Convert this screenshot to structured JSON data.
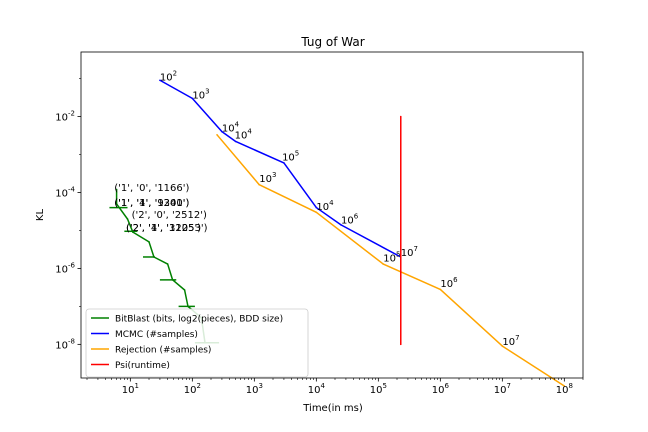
{
  "chart_data": {
    "type": "line",
    "title": "Tug of War",
    "xlabel": "Time(in ms)",
    "ylabel": "KL",
    "xscale": "log",
    "yscale": "log",
    "xlim": [
      1.6,
      200000000
    ],
    "ylim": [
      1.3e-09,
      0.5
    ],
    "x_ticks": [
      {
        "value": 10,
        "label": "10^1"
      },
      {
        "value": 100,
        "label": "10^2"
      },
      {
        "value": 1000,
        "label": "10^3"
      },
      {
        "value": 10000,
        "label": "10^4"
      },
      {
        "value": 100000,
        "label": "10^5"
      },
      {
        "value": 1000000,
        "label": "10^6"
      },
      {
        "value": 10000000,
        "label": "10^7"
      },
      {
        "value": 100000000,
        "label": "10^8"
      }
    ],
    "y_ticks": [
      {
        "value": 0.01,
        "label": "10^-2"
      },
      {
        "value": 0.0001,
        "label": "10^-4"
      },
      {
        "value": 1e-06,
        "label": "10^-6"
      },
      {
        "value": 1e-08,
        "label": "10^-8"
      }
    ],
    "grid": false,
    "legend_position": "lower-left",
    "series": [
      {
        "name": "BitBlast (bits, log2(pieces), BDD size)",
        "color": "#008000",
        "points": [
          [
            6,
            0.00012
          ],
          [
            6,
            5e-05
          ],
          [
            9,
            2e-05
          ],
          [
            11,
            9e-06
          ],
          [
            20,
            5e-06
          ],
          [
            24,
            2e-06
          ],
          [
            40,
            1.3e-06
          ],
          [
            48,
            5e-07
          ],
          [
            75,
            2.7e-07
          ],
          [
            85,
            1e-07
          ],
          [
            140,
            5e-08
          ],
          [
            160,
            1.1e-08
          ]
        ],
        "segments": [
          [
            [
              4.6,
              4e-05
            ],
            [
              9,
              4e-05
            ]
          ],
          [
            [
              8,
              9.5e-06
            ],
            [
              13,
              9.5e-06
            ]
          ],
          [
            [
              16,
              2e-06
            ],
            [
              25,
              2e-06
            ]
          ],
          [
            [
              30,
              5e-07
            ],
            [
              55,
              5e-07
            ]
          ],
          [
            [
              60,
              1e-07
            ],
            [
              110,
              1e-07
            ]
          ],
          [
            [
              110,
              1.1e-08
            ],
            [
              270,
              1.1e-08
            ]
          ]
        ],
        "annotations": [
          {
            "text": "('1', '0', '1166')",
            "x": 5.5,
            "y": 0.00011
          },
          {
            "text": "('1', '1', '1240')",
            "x": 5.5,
            "y": 4.4e-05
          },
          {
            "text": "('1', '4', '9301')",
            "x": 5.5,
            "y": 4.4e-05
          },
          {
            "text": "('2', '0', '2512')",
            "x": 10.5,
            "y": 2.1e-05
          },
          {
            "text": "('2', '1', '1205')",
            "x": 8.5,
            "y": 9.8e-06
          },
          {
            "text": "('2', '4', '31253')",
            "x": 8.5,
            "y": 9.8e-06
          }
        ]
      },
      {
        "name": "MCMC (#samples)",
        "color": "#0000ff",
        "points": [
          [
            30,
            0.09
          ],
          [
            100,
            0.03
          ],
          [
            300,
            0.004
          ],
          [
            500,
            0.0022
          ],
          [
            3000,
            0.0006
          ],
          [
            10000,
            4e-05
          ],
          [
            25000,
            1.4e-05
          ],
          [
            230000,
            2e-06
          ]
        ],
        "annotations": [
          {
            "text": "10^2",
            "x": 30,
            "y": 0.09
          },
          {
            "text": "10^3",
            "x": 100,
            "y": 0.03
          },
          {
            "text": "10^4",
            "x": 300,
            "y": 0.004
          },
          {
            "text": "10^4",
            "x": 480,
            "y": 0.0026
          },
          {
            "text": "10^5",
            "x": 2800,
            "y": 0.0007
          },
          {
            "text": "10^6",
            "x": 25000,
            "y": 1.5e-05
          },
          {
            "text": "10^7",
            "x": 230000,
            "y": 2.1e-06
          }
        ]
      },
      {
        "name": "Rejection (#samples)",
        "color": "#ffa500",
        "points": [
          [
            250,
            0.0033
          ],
          [
            1200,
            0.00016
          ],
          [
            10000,
            3e-05
          ],
          [
            120000,
            1.3e-06
          ],
          [
            1000000,
            2.8e-07
          ],
          [
            10000000,
            9e-09
          ],
          [
            100000000,
            8e-10
          ]
        ],
        "annotations": [
          {
            "text": "10^3",
            "x": 1200,
            "y": 0.00019
          },
          {
            "text": "10^4",
            "x": 10000,
            "y": 3.5e-05
          },
          {
            "text": "10^5",
            "x": 120000,
            "y": 1.5e-06
          },
          {
            "text": "10^6",
            "x": 1000000,
            "y": 3.2e-07
          },
          {
            "text": "10^7",
            "x": 10000000,
            "y": 9.5e-09
          }
        ]
      },
      {
        "name": "Psi(runtime)",
        "color": "#ff0000",
        "points": [
          [
            230000,
            0.01
          ],
          [
            230000,
            1e-08
          ]
        ]
      }
    ]
  }
}
